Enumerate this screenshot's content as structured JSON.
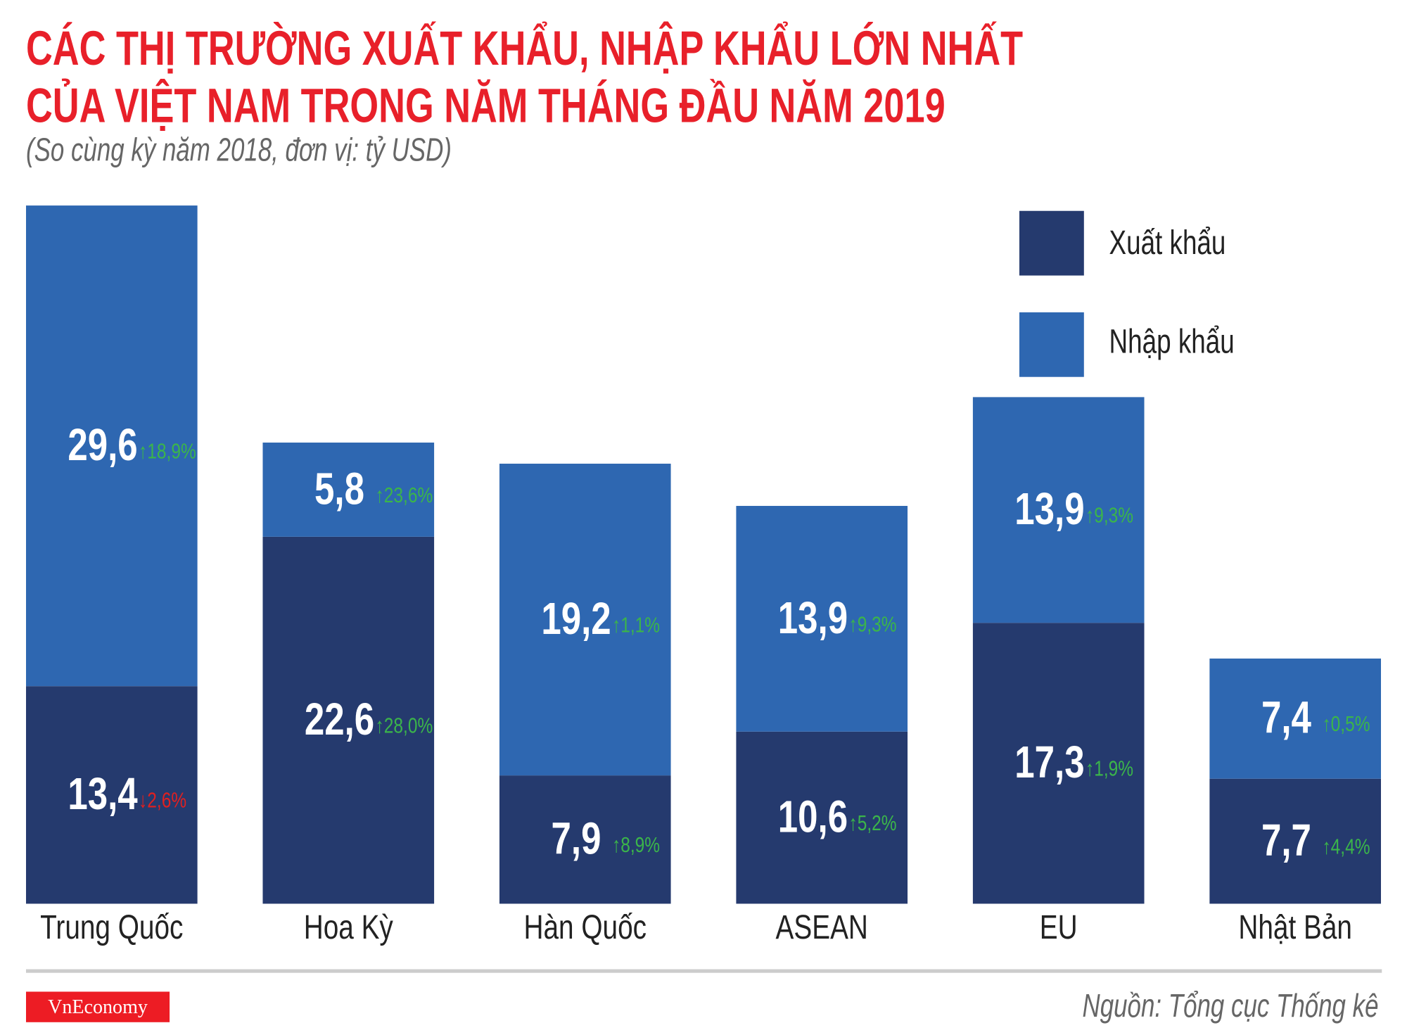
{
  "title_lines": [
    "CÁC THỊ TRƯỜNG XUẤT KHẨU, NHẬP KHẨU LỚN NHẤT",
    "CỦA VIỆT NAM TRONG NĂM THÁNG ĐẦU NĂM 2019"
  ],
  "subtitle": "(So cùng kỳ năm 2018, đơn vị: tỷ USD)",
  "source": "Nguồn: Tổng cục Thống kê",
  "logo": "VnEconomy",
  "colors": {
    "title": "#e8202a",
    "export": "#253a6e",
    "import": "#2e67b1",
    "up": "#3bb54a",
    "down": "#e02020"
  },
  "chart_data": {
    "type": "bar",
    "stacked": true,
    "categories": [
      "Trung Quốc",
      "Hoa Kỳ",
      "Hàn Quốc",
      "ASEAN",
      "EU",
      "Nhật Bản"
    ],
    "series": [
      {
        "name": "Xuất khẩu",
        "values": [
          13.4,
          22.6,
          7.9,
          10.6,
          17.3,
          7.7
        ],
        "labels": [
          "13,4",
          "22,6",
          "7,9",
          "10,6",
          "17,3",
          "7,7"
        ],
        "change": [
          "2,6%",
          "28,0%",
          "8,9%",
          "5,2%",
          "1,9%",
          "4,4%"
        ],
        "direction": [
          "down",
          "up",
          "up",
          "up",
          "up",
          "up"
        ]
      },
      {
        "name": "Nhập khẩu",
        "values": [
          29.6,
          5.8,
          19.2,
          13.9,
          13.9,
          7.4
        ],
        "labels": [
          "29,6",
          "5,8",
          "19,2",
          "13,9",
          "13,9",
          "7,4"
        ],
        "change": [
          "18,9%",
          "23,6%",
          "1,1%",
          "9,3%",
          "9,3%",
          "0,5%"
        ],
        "direction": [
          "up",
          "up",
          "up",
          "up",
          "up",
          "up"
        ]
      }
    ],
    "legend_position": "top-right",
    "grid": false,
    "ylim": [
      0,
      43
    ]
  }
}
